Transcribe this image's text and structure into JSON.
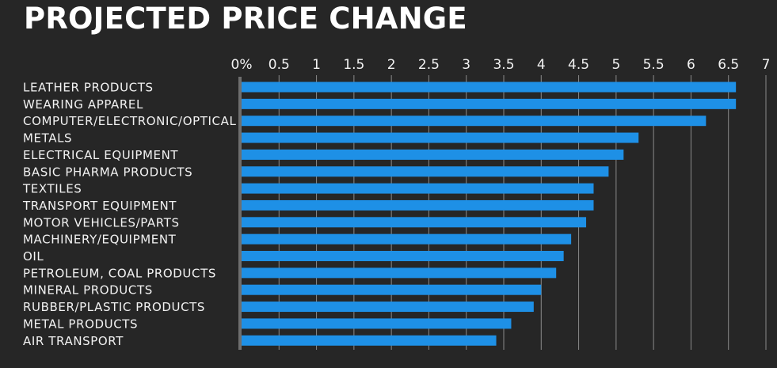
{
  "chart_data": {
    "type": "bar",
    "orientation": "horizontal",
    "title": "PROJECTED PRICE CHANGE",
    "xlabel": "",
    "ylabel": "",
    "xlim": [
      0,
      7
    ],
    "x_ticks": [
      "0%",
      "0.5",
      "1",
      "1.5",
      "2",
      "2.5",
      "3",
      "3.5",
      "4",
      "4.5",
      "5",
      "5.5",
      "6",
      "6.5",
      "7"
    ],
    "grid": "vertical",
    "legend": "none",
    "categories": [
      "LEATHER PRODUCTS",
      "WEARING APPAREL",
      "COMPUTER/ELECTRONIC/OPTICAL",
      "METALS",
      "ELECTRICAL EQUIPMENT",
      "BASIC PHARMA PRODUCTS",
      "TEXTILES",
      "TRANSPORT EQUIPMENT",
      "MOTOR VEHICLES/PARTS",
      "MACHINERY/EQUIPMENT",
      "OIL",
      "PETROLEUM, COAL PRODUCTS",
      "MINERAL PRODUCTS",
      "RUBBER/PLASTIC PRODUCTS",
      "METAL PRODUCTS",
      "AIR TRANSPORT"
    ],
    "values": [
      6.6,
      6.6,
      6.2,
      5.3,
      5.1,
      4.9,
      4.7,
      4.7,
      4.6,
      4.4,
      4.3,
      4.2,
      4.0,
      3.9,
      3.6,
      3.4
    ],
    "colors": {
      "background": "#262626",
      "bar": "#1e90e6",
      "grid": "#8a8a8a",
      "axis": "#6e6e6e",
      "text": "#f2f2f2"
    }
  }
}
